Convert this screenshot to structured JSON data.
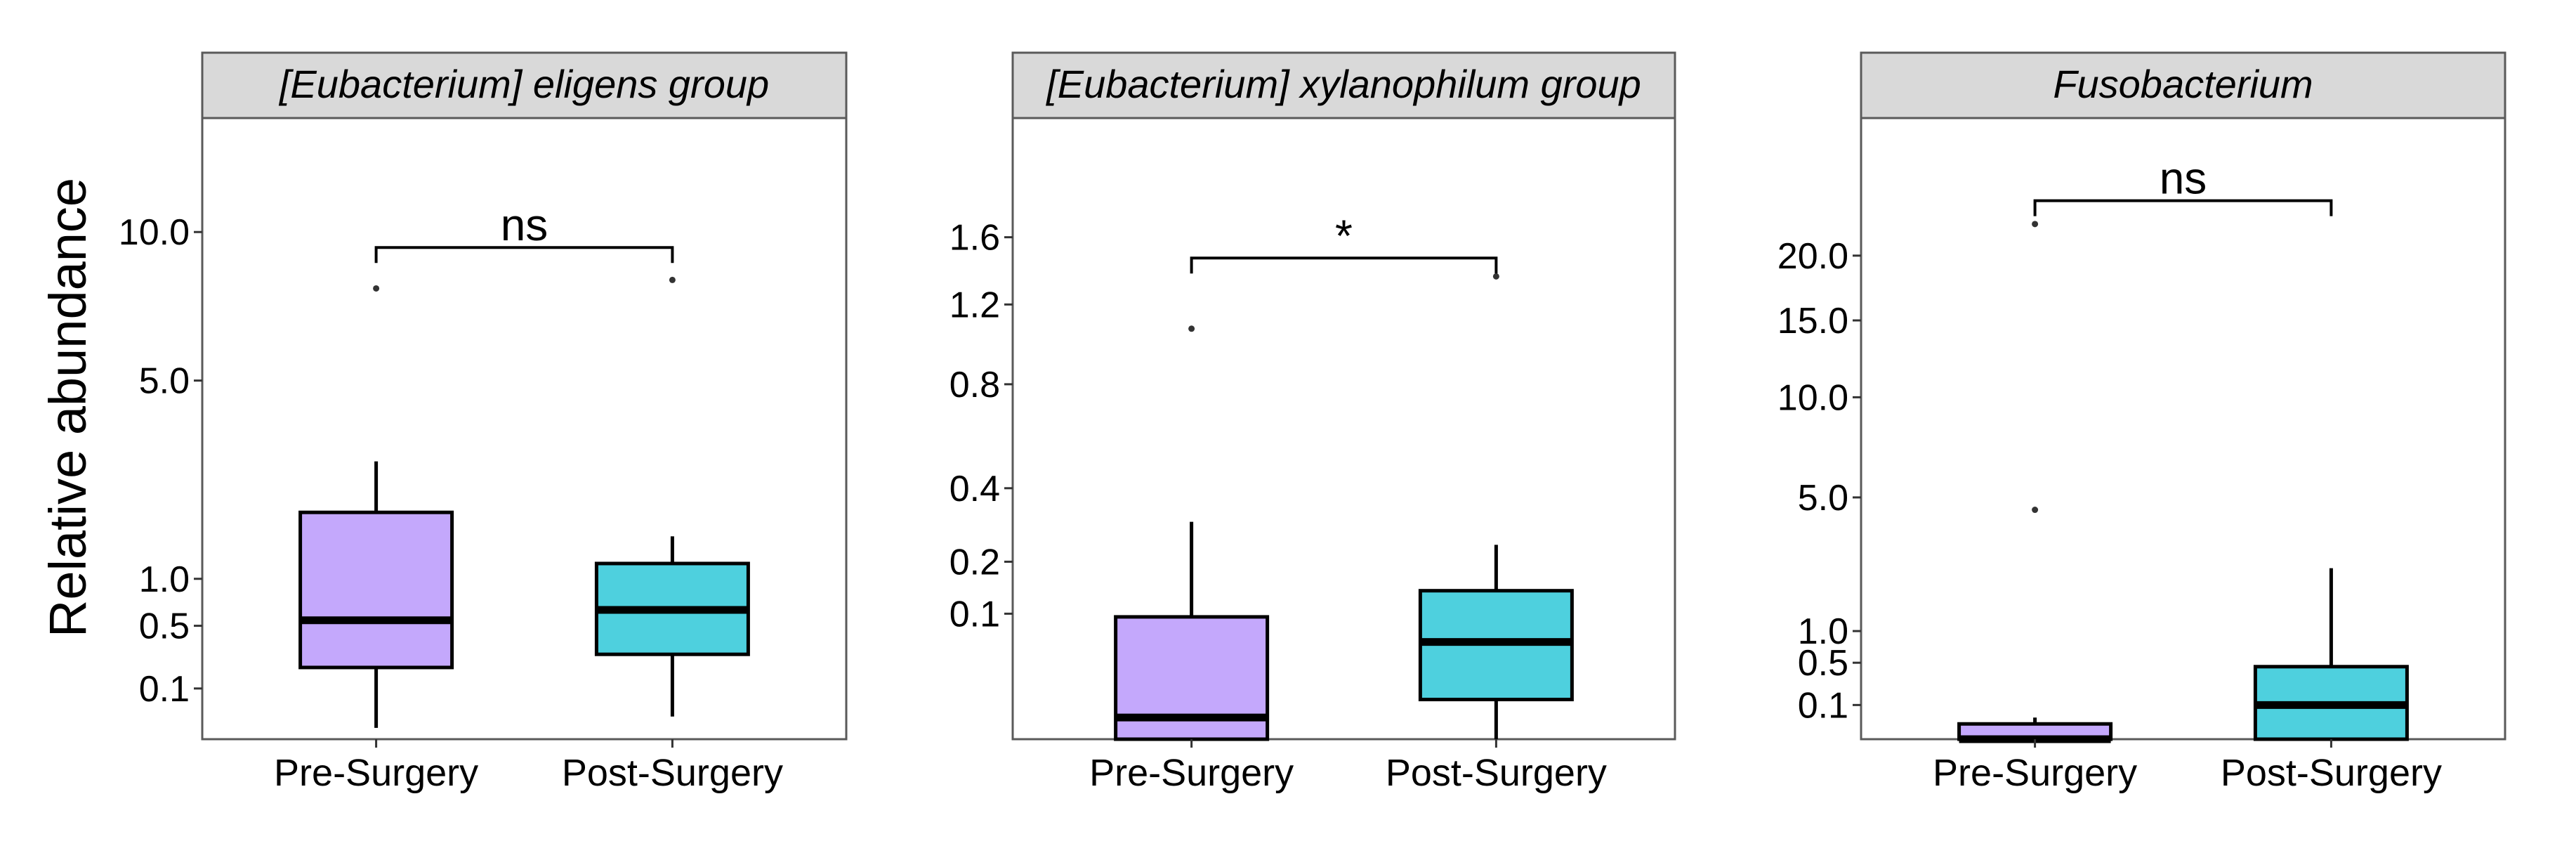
{
  "ylabel": "Relative abundance",
  "colors": {
    "pre": "#c4a8fc",
    "post": "#4ed0de",
    "strip": "#d9d9d9"
  },
  "chart_data": [
    {
      "type": "boxplot",
      "title": "[Eubacterium] eligens group",
      "categories": [
        "Pre-Surgery",
        "Post-Surgery"
      ],
      "y_scale": "sqrt",
      "ylim": [
        0,
        15
      ],
      "yticks": [
        0.1,
        0.5,
        1.0,
        5.0,
        10.0
      ],
      "ytick_labels": [
        "0.1",
        "0.5",
        "1.0",
        "5.0",
        "10.0"
      ],
      "boxes": [
        {
          "name": "Pre-Surgery",
          "whisker_low": 0.005,
          "q1": 0.2,
          "median": 0.55,
          "q3": 2.0,
          "whisker_high": 3.0,
          "outliers": [
            7.9
          ]
        },
        {
          "name": "Post-Surgery",
          "whisker_low": 0.02,
          "q1": 0.28,
          "median": 0.65,
          "q3": 1.2,
          "whisker_high": 1.6,
          "outliers": [
            8.2
          ]
        }
      ],
      "significance": {
        "label": "ns",
        "y": 9.4
      }
    },
    {
      "type": "boxplot",
      "title": "[Eubacterium] xylanophilum group",
      "categories": [
        "Pre-Surgery",
        "Post-Surgery"
      ],
      "y_scale": "sqrt",
      "ylim": [
        0,
        2.45
      ],
      "yticks": [
        0.1,
        0.2,
        0.4,
        0.8,
        1.2,
        1.6
      ],
      "ytick_labels": [
        "0.1",
        "0.2",
        "0.4",
        "0.8",
        "1.2",
        "1.6"
      ],
      "boxes": [
        {
          "name": "Pre-Surgery",
          "whisker_low": 0.0,
          "q1": 0.0,
          "median": 0.003,
          "q3": 0.095,
          "whisker_high": 0.3,
          "outliers": [
            1.07
          ]
        },
        {
          "name": "Post-Surgery",
          "whisker_low": 0.0,
          "q1": 0.01,
          "median": 0.06,
          "q3": 0.14,
          "whisker_high": 0.24,
          "outliers": [
            1.36
          ]
        }
      ],
      "significance": {
        "label": "*",
        "y": 1.47
      }
    },
    {
      "type": "boxplot",
      "title": "Fusobacterium",
      "categories": [
        "Pre-Surgery",
        "Post-Surgery"
      ],
      "y_scale": "sqrt",
      "ylim": [
        0,
        33
      ],
      "yticks": [
        0.1,
        0.5,
        1.0,
        5.0,
        10.0,
        15.0,
        20.0
      ],
      "ytick_labels": [
        "0.1",
        "0.5",
        "1.0",
        "5.0",
        "10.0",
        "15.0",
        "20.0"
      ],
      "boxes": [
        {
          "name": "Pre-Surgery",
          "whisker_low": 0.0,
          "q1": 0.0,
          "median": 0.0,
          "q3": 0.02,
          "whisker_high": 0.04,
          "outliers": [
            4.5
          ]
        },
        {
          "name": "Post-Surgery",
          "whisker_low": 0.0,
          "q1": 0.0,
          "median": 0.1,
          "q3": 0.45,
          "whisker_high": 2.5,
          "outliers": []
        }
      ],
      "significance": {
        "label": "ns",
        "y": 24.8,
        "left_outlier": 22.7
      }
    }
  ]
}
